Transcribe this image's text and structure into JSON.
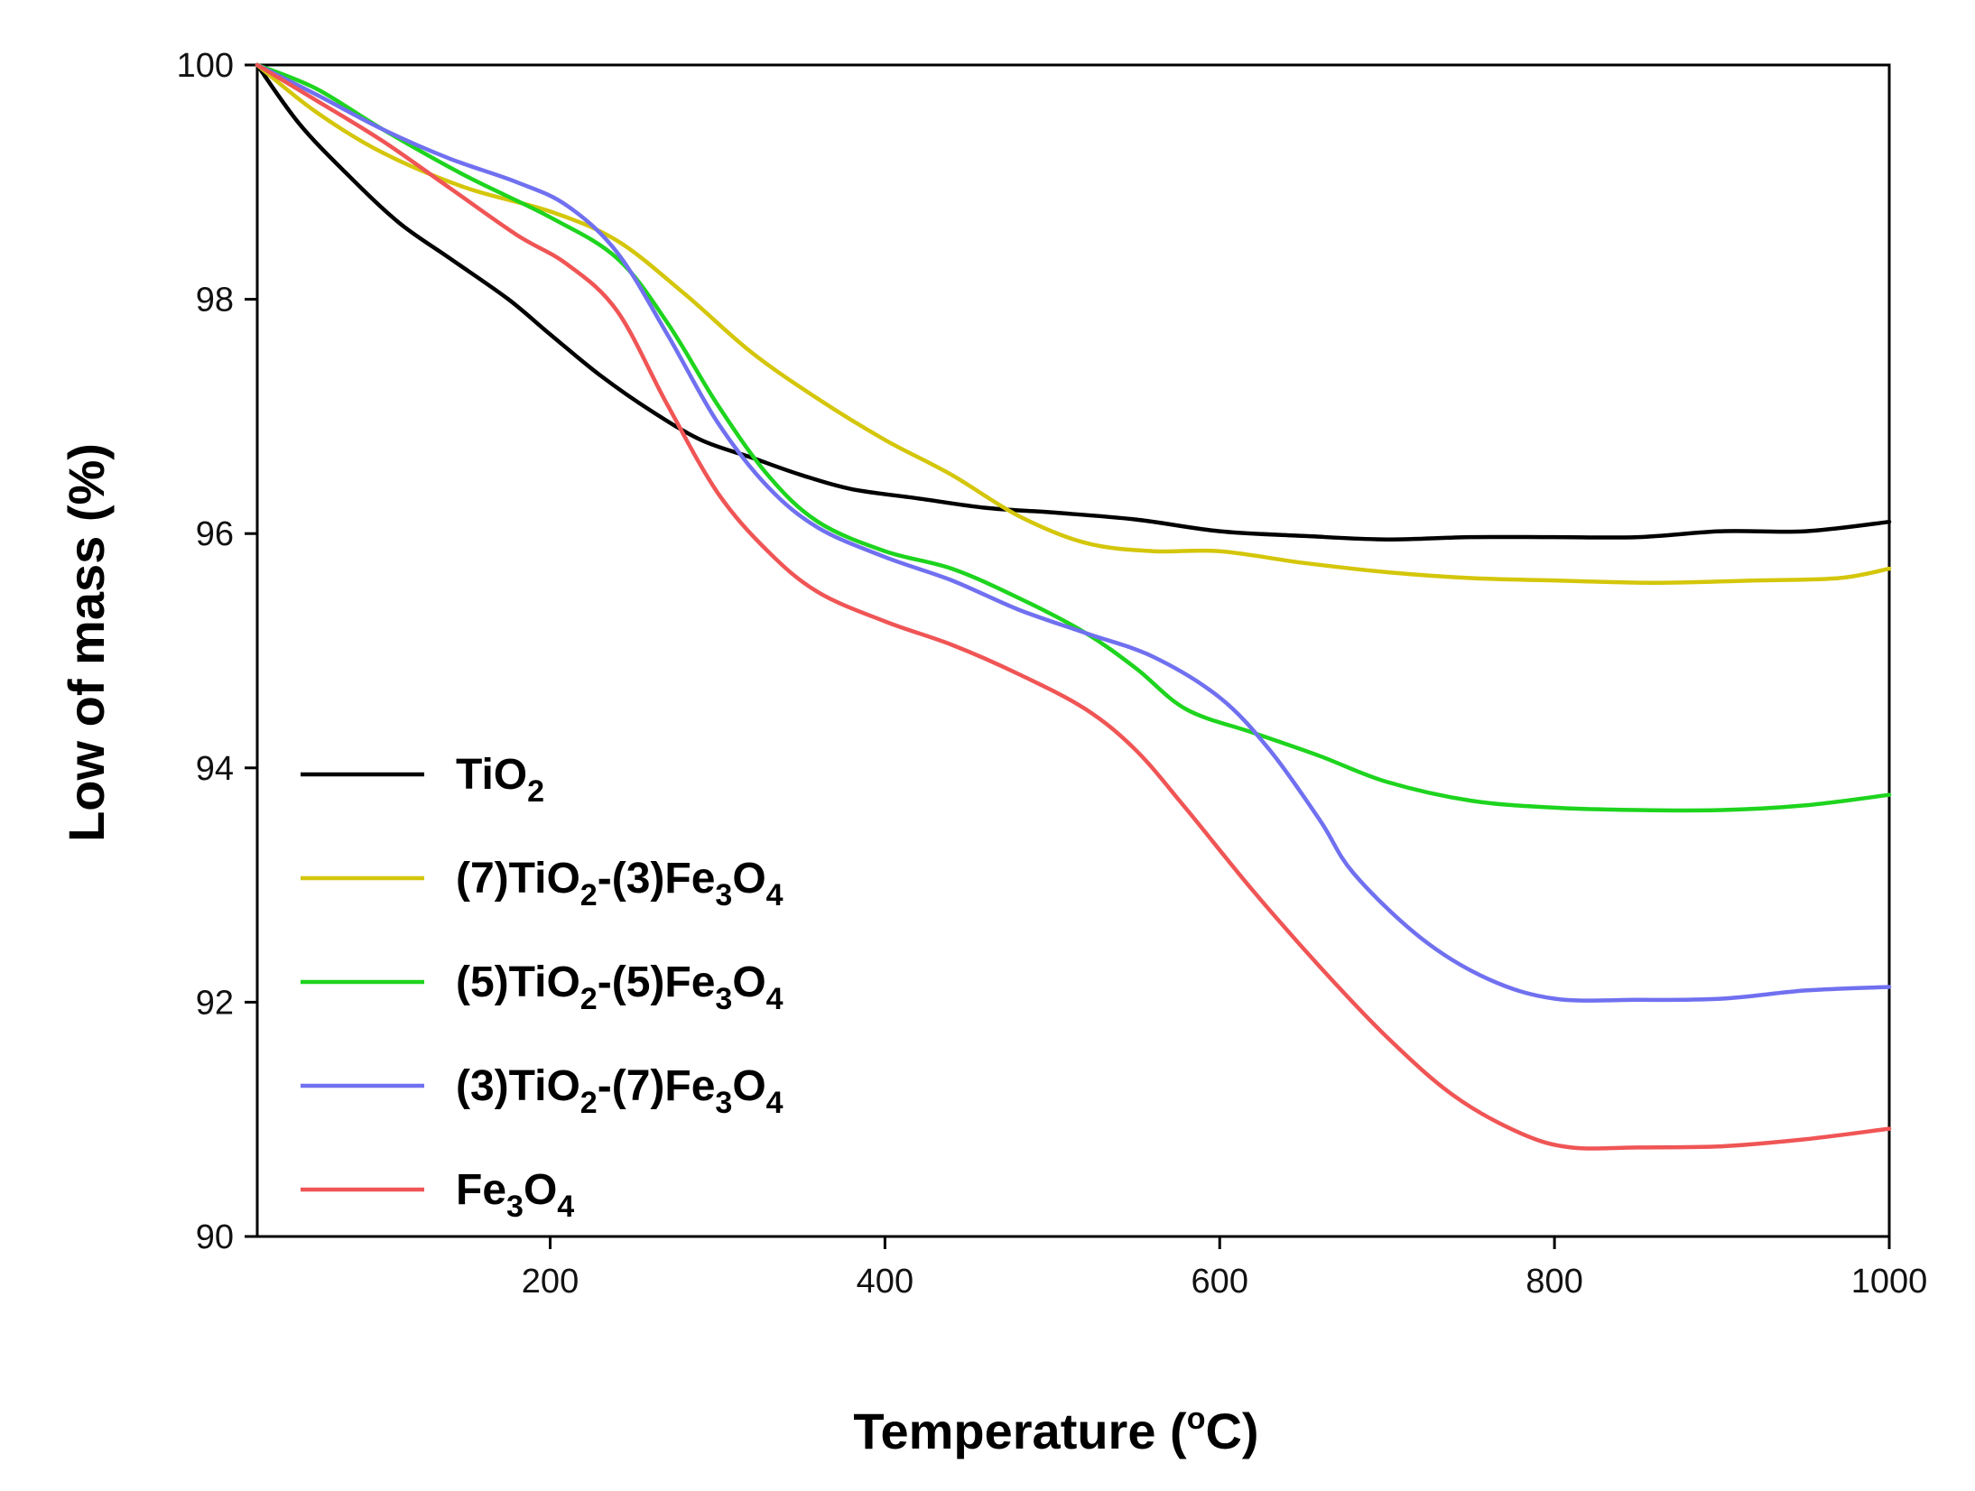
{
  "chart_data": {
    "type": "line",
    "title": "",
    "xlabel": {
      "prefix": "Temperature (",
      "sup": "o",
      "suffix": "C)"
    },
    "ylabel": "Low of mass (%)",
    "xlim": [
      25,
      1000
    ],
    "ylim": [
      90,
      100
    ],
    "xticks": [
      200,
      400,
      600,
      800,
      1000
    ],
    "yticks": [
      90,
      92,
      94,
      96,
      98,
      100
    ],
    "grid": false,
    "legend_position": "bottom-left",
    "series": [
      {
        "name": "TiO2",
        "label_parts": [
          [
            "TiO",
            ""
          ],
          [
            "2",
            "sub"
          ]
        ],
        "color": "#000000",
        "x": [
          25,
          50,
          80,
          110,
          140,
          175,
          200,
          230,
          260,
          290,
          320,
          350,
          380,
          420,
          460,
          500,
          550,
          600,
          650,
          700,
          750,
          800,
          850,
          900,
          950,
          1000
        ],
        "y": [
          100,
          99.5,
          99.05,
          98.65,
          98.35,
          98.0,
          97.7,
          97.35,
          97.05,
          96.8,
          96.65,
          96.5,
          96.38,
          96.3,
          96.22,
          96.18,
          96.12,
          96.02,
          95.98,
          95.95,
          95.97,
          95.97,
          95.97,
          96.02,
          96.02,
          96.1
        ]
      },
      {
        "name": "(7)TiO2-(3)Fe3O4",
        "label_parts": [
          [
            "(7)TiO",
            ""
          ],
          [
            "2",
            "sub"
          ],
          [
            "-(3)Fe",
            ""
          ],
          [
            "3",
            "sub"
          ],
          [
            "O",
            ""
          ],
          [
            "4",
            "sub"
          ]
        ],
        "color": "#d4c60a",
        "x": [
          25,
          60,
          100,
          150,
          200,
          240,
          280,
          320,
          360,
          400,
          440,
          480,
          520,
          560,
          600,
          650,
          700,
          750,
          800,
          860,
          920,
          970,
          1000
        ],
        "y": [
          100,
          99.6,
          99.25,
          98.95,
          98.75,
          98.5,
          98.05,
          97.55,
          97.15,
          96.8,
          96.5,
          96.15,
          95.92,
          95.85,
          95.85,
          95.75,
          95.67,
          95.62,
          95.6,
          95.58,
          95.6,
          95.62,
          95.7
        ]
      },
      {
        "name": "(5)TiO2-(5)Fe3O4",
        "label_parts": [
          [
            "(5)TiO",
            ""
          ],
          [
            "2",
            "sub"
          ],
          [
            "-(5)Fe",
            ""
          ],
          [
            "3",
            "sub"
          ],
          [
            "O",
            ""
          ],
          [
            "4",
            "sub"
          ]
        ],
        "color": "#1ed41e",
        "x": [
          25,
          60,
          100,
          150,
          200,
          240,
          270,
          300,
          330,
          360,
          400,
          440,
          480,
          520,
          550,
          580,
          620,
          660,
          700,
          750,
          800,
          850,
          900,
          950,
          1000
        ],
        "y": [
          100,
          99.8,
          99.45,
          99.05,
          98.7,
          98.35,
          97.8,
          97.1,
          96.5,
          96.1,
          95.85,
          95.7,
          95.45,
          95.15,
          94.85,
          94.5,
          94.3,
          94.1,
          93.88,
          93.72,
          93.66,
          93.64,
          93.64,
          93.68,
          93.77
        ]
      },
      {
        "name": "(3)TiO2-(7)Fe3O4",
        "label_parts": [
          [
            "(3)TiO",
            ""
          ],
          [
            "2",
            "sub"
          ],
          [
            "-(7)Fe",
            ""
          ],
          [
            "3",
            "sub"
          ],
          [
            "O",
            ""
          ],
          [
            "4",
            "sub"
          ]
        ],
        "color": "#7070f0",
        "x": [
          25,
          60,
          100,
          140,
          180,
          210,
          240,
          270,
          300,
          330,
          360,
          400,
          440,
          480,
          520,
          560,
          600,
          630,
          660,
          680,
          720,
          760,
          800,
          850,
          900,
          950,
          1000
        ],
        "y": [
          100,
          99.75,
          99.45,
          99.2,
          99.0,
          98.8,
          98.4,
          97.7,
          96.95,
          96.4,
          96.05,
          95.8,
          95.6,
          95.35,
          95.15,
          94.95,
          94.6,
          94.15,
          93.55,
          93.1,
          92.55,
          92.2,
          92.03,
          92.02,
          92.03,
          92.1,
          92.13
        ]
      },
      {
        "name": "Fe3O4",
        "label_parts": [
          [
            "Fe",
            ""
          ],
          [
            "3",
            "sub"
          ],
          [
            "O",
            ""
          ],
          [
            "4",
            "sub"
          ]
        ],
        "color": "#f05555",
        "x": [
          25,
          60,
          100,
          140,
          180,
          210,
          240,
          270,
          300,
          330,
          360,
          400,
          440,
          480,
          520,
          550,
          580,
          620,
          660,
          700,
          740,
          780,
          810,
          850,
          900,
          950,
          1000
        ],
        "y": [
          100,
          99.7,
          99.35,
          98.95,
          98.55,
          98.3,
          97.9,
          97.1,
          96.35,
          95.85,
          95.5,
          95.25,
          95.05,
          94.8,
          94.5,
          94.15,
          93.65,
          92.95,
          92.3,
          91.7,
          91.2,
          90.88,
          90.76,
          90.76,
          90.77,
          90.83,
          90.92
        ]
      }
    ]
  }
}
